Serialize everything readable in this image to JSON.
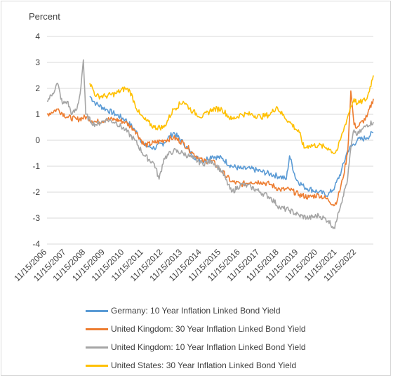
{
  "chart_data": {
    "type": "line",
    "ylabel": "Percent",
    "ylim": [
      -4,
      4
    ],
    "yticks": [
      4,
      3,
      2,
      1,
      0,
      -1,
      -2,
      -3,
      -4
    ],
    "grid": "horizontal",
    "legend_position": "bottom",
    "x_start": "2006-11-15",
    "x_end": "2023-09-30",
    "xtick_labels": [
      "11/15/2006",
      "11/15/2007",
      "11/15/2008",
      "11/15/2009",
      "11/15/2010",
      "11/15/2011",
      "11/15/2012",
      "11/15/2013",
      "11/15/2014",
      "11/15/2015",
      "11/15/2016",
      "11/15/2017",
      "11/15/2018",
      "11/15/2019",
      "11/15/2020",
      "11/15/2021",
      "11/15/2022"
    ],
    "series": [
      {
        "name": "Germany: 10 Year Inflation Linked Bond Yield",
        "color": "#5b9bd5",
        "points": [
          [
            "2009-02-01",
            1.7
          ],
          [
            "2009-06-01",
            1.4
          ],
          [
            "2009-12-01",
            1.2
          ],
          [
            "2010-06-01",
            1.0
          ],
          [
            "2010-12-01",
            0.8
          ],
          [
            "2011-06-01",
            0.4
          ],
          [
            "2011-12-01",
            -0.2
          ],
          [
            "2012-06-01",
            -0.3
          ],
          [
            "2012-12-01",
            -0.1
          ],
          [
            "2013-06-01",
            0.3
          ],
          [
            "2013-12-01",
            -0.1
          ],
          [
            "2014-06-01",
            -0.6
          ],
          [
            "2014-12-01",
            -0.8
          ],
          [
            "2015-06-01",
            -0.6
          ],
          [
            "2015-12-01",
            -0.7
          ],
          [
            "2016-06-01",
            -1.0
          ],
          [
            "2016-12-01",
            -1.1
          ],
          [
            "2017-06-01",
            -1.1
          ],
          [
            "2017-12-01",
            -1.2
          ],
          [
            "2018-06-01",
            -1.3
          ],
          [
            "2018-12-01",
            -1.4
          ],
          [
            "2019-04-01",
            -1.5
          ],
          [
            "2019-06-01",
            -0.6
          ],
          [
            "2019-10-01",
            -1.5
          ],
          [
            "2020-03-01",
            -1.8
          ],
          [
            "2020-12-01",
            -2.0
          ],
          [
            "2021-06-01",
            -2.1
          ],
          [
            "2021-10-01",
            -1.8
          ],
          [
            "2022-02-01",
            -1.2
          ],
          [
            "2022-06-01",
            -0.4
          ],
          [
            "2022-12-01",
            0.0
          ],
          [
            "2023-06-01",
            0.1
          ],
          [
            "2023-09-30",
            0.3
          ]
        ]
      },
      {
        "name": "United Kingdom: 30 Year Inflation Linked Bond Yield",
        "color": "#ed7d31",
        "points": [
          [
            "2006-11-15",
            1.0
          ],
          [
            "2007-06-01",
            1.2
          ],
          [
            "2007-12-01",
            0.9
          ],
          [
            "2008-06-01",
            0.8
          ],
          [
            "2008-12-01",
            0.9
          ],
          [
            "2009-06-01",
            0.7
          ],
          [
            "2009-12-01",
            0.8
          ],
          [
            "2010-06-01",
            0.8
          ],
          [
            "2010-12-01",
            0.7
          ],
          [
            "2011-06-01",
            0.4
          ],
          [
            "2011-12-01",
            -0.2
          ],
          [
            "2012-06-01",
            -0.1
          ],
          [
            "2012-12-01",
            0.0
          ],
          [
            "2013-06-01",
            0.1
          ],
          [
            "2013-12-01",
            -0.1
          ],
          [
            "2014-06-01",
            -0.5
          ],
          [
            "2014-12-01",
            -0.8
          ],
          [
            "2015-06-01",
            -0.8
          ],
          [
            "2015-12-01",
            -1.2
          ],
          [
            "2016-06-01",
            -1.6
          ],
          [
            "2016-12-01",
            -1.7
          ],
          [
            "2017-06-01",
            -1.6
          ],
          [
            "2017-12-01",
            -1.6
          ],
          [
            "2018-06-01",
            -1.7
          ],
          [
            "2018-12-01",
            -1.9
          ],
          [
            "2019-06-01",
            -1.9
          ],
          [
            "2019-12-01",
            -2.1
          ],
          [
            "2020-06-01",
            -2.2
          ],
          [
            "2020-12-01",
            -2.1
          ],
          [
            "2021-06-01",
            -2.3
          ],
          [
            "2021-10-01",
            -2.5
          ],
          [
            "2021-12-01",
            -2.2
          ],
          [
            "2022-03-01",
            -1.5
          ],
          [
            "2022-06-01",
            -0.5
          ],
          [
            "2022-08-01",
            1.9
          ],
          [
            "2022-10-01",
            0.6
          ],
          [
            "2022-12-01",
            0.5
          ],
          [
            "2023-06-01",
            0.9
          ],
          [
            "2023-09-30",
            1.6
          ]
        ]
      },
      {
        "name": "United Kingdom: 10 Year Inflation Linked Bond Yield",
        "color": "#a5a5a5",
        "points": [
          [
            "2006-11-15",
            1.5
          ],
          [
            "2007-03-01",
            1.8
          ],
          [
            "2007-06-01",
            2.2
          ],
          [
            "2007-09-01",
            1.4
          ],
          [
            "2007-12-01",
            1.5
          ],
          [
            "2008-03-01",
            1.0
          ],
          [
            "2008-06-01",
            1.2
          ],
          [
            "2008-08-01",
            1.8
          ],
          [
            "2008-10-01",
            3.1
          ],
          [
            "2008-11-15",
            1.0
          ],
          [
            "2009-03-01",
            0.7
          ],
          [
            "2009-06-01",
            0.6
          ],
          [
            "2009-12-01",
            0.8
          ],
          [
            "2010-06-01",
            0.7
          ],
          [
            "2010-12-01",
            0.4
          ],
          [
            "2011-06-01",
            0.0
          ],
          [
            "2011-12-01",
            -0.6
          ],
          [
            "2012-06-01",
            -0.9
          ],
          [
            "2012-09-01",
            -1.5
          ],
          [
            "2012-12-01",
            -0.7
          ],
          [
            "2013-06-01",
            -0.4
          ],
          [
            "2013-12-01",
            -0.5
          ],
          [
            "2014-06-01",
            -0.7
          ],
          [
            "2014-12-01",
            -0.9
          ],
          [
            "2015-06-01",
            -0.8
          ],
          [
            "2015-12-01",
            -1.2
          ],
          [
            "2016-06-01",
            -2.0
          ],
          [
            "2016-12-01",
            -1.7
          ],
          [
            "2017-06-01",
            -1.8
          ],
          [
            "2017-12-01",
            -2.0
          ],
          [
            "2018-06-01",
            -2.2
          ],
          [
            "2018-12-01",
            -2.6
          ],
          [
            "2019-06-01",
            -2.7
          ],
          [
            "2019-12-01",
            -2.9
          ],
          [
            "2020-06-01",
            -3.0
          ],
          [
            "2020-12-01",
            -2.9
          ],
          [
            "2021-06-01",
            -3.1
          ],
          [
            "2021-10-01",
            -3.4
          ],
          [
            "2021-12-01",
            -2.8
          ],
          [
            "2022-03-01",
            -2.2
          ],
          [
            "2022-06-01",
            -1.5
          ],
          [
            "2022-08-01",
            -0.3
          ],
          [
            "2022-10-01",
            0.4
          ],
          [
            "2022-12-01",
            0.2
          ],
          [
            "2023-06-01",
            0.6
          ],
          [
            "2023-09-30",
            0.7
          ]
        ]
      },
      {
        "name": "United States: 30 Year Inflation Linked Bond Yield",
        "color": "#ffc000",
        "points": [
          [
            "2009-02-01",
            2.2
          ],
          [
            "2009-06-01",
            1.7
          ],
          [
            "2009-12-01",
            1.7
          ],
          [
            "2010-06-01",
            1.8
          ],
          [
            "2010-12-01",
            2.0
          ],
          [
            "2011-03-01",
            1.9
          ],
          [
            "2011-06-01",
            1.4
          ],
          [
            "2011-09-01",
            1.0
          ],
          [
            "2011-12-01",
            0.8
          ],
          [
            "2012-06-01",
            0.5
          ],
          [
            "2012-12-01",
            0.5
          ],
          [
            "2013-06-01",
            1.2
          ],
          [
            "2013-12-01",
            1.5
          ],
          [
            "2014-06-01",
            1.1
          ],
          [
            "2014-12-01",
            0.9
          ],
          [
            "2015-06-01",
            1.2
          ],
          [
            "2015-12-01",
            1.2
          ],
          [
            "2016-06-01",
            0.8
          ],
          [
            "2016-12-01",
            1.0
          ],
          [
            "2017-06-01",
            1.0
          ],
          [
            "2017-12-01",
            0.9
          ],
          [
            "2018-06-01",
            1.0
          ],
          [
            "2018-10-01",
            1.3
          ],
          [
            "2018-12-01",
            1.1
          ],
          [
            "2019-06-01",
            0.7
          ],
          [
            "2019-12-01",
            0.3
          ],
          [
            "2020-03-01",
            -0.3
          ],
          [
            "2020-06-01",
            -0.2
          ],
          [
            "2020-12-01",
            -0.2
          ],
          [
            "2021-06-01",
            -0.3
          ],
          [
            "2021-10-01",
            -0.5
          ],
          [
            "2021-12-01",
            -0.3
          ],
          [
            "2022-03-01",
            0.3
          ],
          [
            "2022-06-01",
            0.9
          ],
          [
            "2022-08-01",
            1.3
          ],
          [
            "2022-10-01",
            1.6
          ],
          [
            "2022-12-01",
            1.4
          ],
          [
            "2023-06-01",
            1.6
          ],
          [
            "2023-09-30",
            2.5
          ]
        ]
      }
    ]
  }
}
